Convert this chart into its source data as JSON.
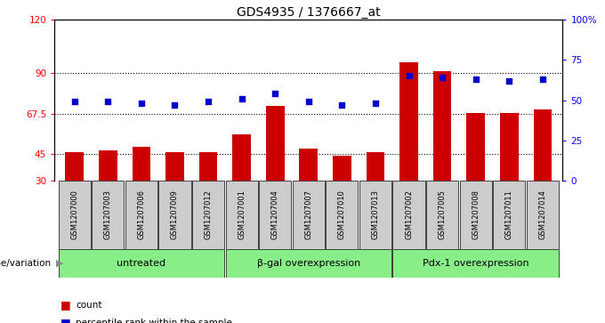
{
  "title": "GDS4935 / 1376667_at",
  "samples": [
    "GSM1207000",
    "GSM1207003",
    "GSM1207006",
    "GSM1207009",
    "GSM1207012",
    "GSM1207001",
    "GSM1207004",
    "GSM1207007",
    "GSM1207010",
    "GSM1207013",
    "GSM1207002",
    "GSM1207005",
    "GSM1207008",
    "GSM1207011",
    "GSM1207014"
  ],
  "counts": [
    46,
    47,
    49,
    46,
    46,
    56,
    72,
    48,
    44,
    46,
    96,
    91,
    68,
    68,
    70
  ],
  "percentiles": [
    49,
    49,
    48,
    47,
    49,
    51,
    54,
    49,
    47,
    48,
    65,
    64,
    63,
    62,
    63
  ],
  "groups": [
    {
      "label": "untreated",
      "start": 0,
      "end": 5
    },
    {
      "label": "β-gal overexpression",
      "start": 5,
      "end": 10
    },
    {
      "label": "Pdx-1 overexpression",
      "start": 10,
      "end": 15
    }
  ],
  "ylim_left": [
    30,
    120
  ],
  "ylim_right": [
    0,
    100
  ],
  "yticks_left": [
    30,
    45,
    67.5,
    90,
    120
  ],
  "yticks_right": [
    0,
    25,
    50,
    75,
    100
  ],
  "ytick_labels_left": [
    "30",
    "45",
    "67.5",
    "90",
    "120"
  ],
  "ytick_labels_right": [
    "0",
    "25",
    "50",
    "75",
    "100%"
  ],
  "bar_color": "#cc0000",
  "dot_color": "#0000cc",
  "group_bg_color": "#88ee88",
  "sample_bg_color": "#cccccc",
  "legend_label_count": "count",
  "legend_label_percentile": "percentile rank within the sample",
  "xlabel_group": "genotype/variation"
}
